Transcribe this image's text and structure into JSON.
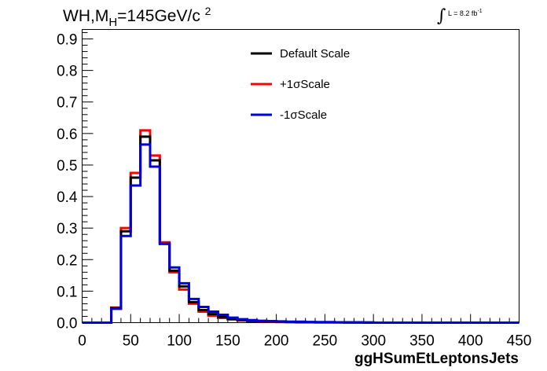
{
  "header": {
    "title_prefix": "WH,M",
    "title_sub": "H",
    "title_value": "=145GeV/c",
    "title_sup": "2",
    "lumi_text": "L = 8.2 fb",
    "lumi_sup": "-1"
  },
  "chart_data": {
    "type": "line",
    "style": "step-histogram",
    "title": "",
    "xlabel": "ggHSumEtLeptonsJets",
    "ylabel": "",
    "xlim": [
      0,
      450
    ],
    "ylim": [
      0,
      0.93
    ],
    "x_ticks": [
      0,
      50,
      100,
      150,
      200,
      250,
      300,
      350,
      400,
      450
    ],
    "y_ticks": [
      0.0,
      0.1,
      0.2,
      0.3,
      0.4,
      0.5,
      0.6,
      0.7,
      0.8,
      0.9
    ],
    "y_tick_labels": [
      "0.0",
      "0.1",
      "0.2",
      "0.3",
      "0.4",
      "0.5",
      "0.6",
      "0.7",
      "0.8",
      "0.9"
    ],
    "bin_edges": [
      0,
      10,
      20,
      30,
      40,
      50,
      60,
      70,
      80,
      90,
      100,
      110,
      120,
      130,
      140,
      150,
      160,
      170,
      180,
      190,
      200,
      210,
      220,
      230,
      240,
      250,
      260,
      270,
      280,
      290,
      300,
      310,
      320,
      330,
      340,
      350,
      360,
      370,
      380,
      390,
      400,
      410,
      420,
      430,
      440,
      450
    ],
    "legend_position": "top-center",
    "series": [
      {
        "name": "Default Scale",
        "color": "#000000",
        "values": [
          0,
          0,
          0,
          0.046,
          0.29,
          0.46,
          0.59,
          0.515,
          0.25,
          0.165,
          0.115,
          0.065,
          0.04,
          0.027,
          0.018,
          0.012,
          0.008,
          0.006,
          0.005,
          0.004,
          0.003,
          0.002,
          0.002,
          0.002,
          0.001,
          0.001,
          0.001,
          0.001,
          0.001,
          0,
          0,
          0,
          0,
          0,
          0,
          0,
          0,
          0,
          0,
          0,
          0,
          0,
          0,
          0,
          0
        ]
      },
      {
        "name": "+1σScale",
        "color": "#ff0000",
        "values": [
          0,
          0,
          0,
          0.048,
          0.3,
          0.475,
          0.61,
          0.53,
          0.255,
          0.16,
          0.105,
          0.06,
          0.035,
          0.022,
          0.015,
          0.01,
          0.007,
          0.005,
          0.004,
          0.003,
          0.002,
          0.002,
          0.001,
          0.001,
          0.001,
          0.001,
          0.001,
          0,
          0,
          0,
          0,
          0,
          0,
          0,
          0,
          0,
          0,
          0,
          0,
          0,
          0,
          0,
          0,
          0,
          0
        ]
      },
      {
        "name": "-1σScale",
        "color": "#0000dd",
        "values": [
          0,
          0,
          0,
          0.044,
          0.275,
          0.435,
          0.565,
          0.495,
          0.25,
          0.175,
          0.125,
          0.075,
          0.05,
          0.035,
          0.025,
          0.016,
          0.011,
          0.008,
          0.006,
          0.005,
          0.004,
          0.003,
          0.003,
          0.002,
          0.002,
          0.002,
          0.001,
          0.001,
          0.001,
          0.001,
          0,
          0,
          0,
          0,
          0,
          0,
          0,
          0,
          0,
          0,
          0,
          0,
          0,
          0,
          0
        ]
      }
    ]
  }
}
